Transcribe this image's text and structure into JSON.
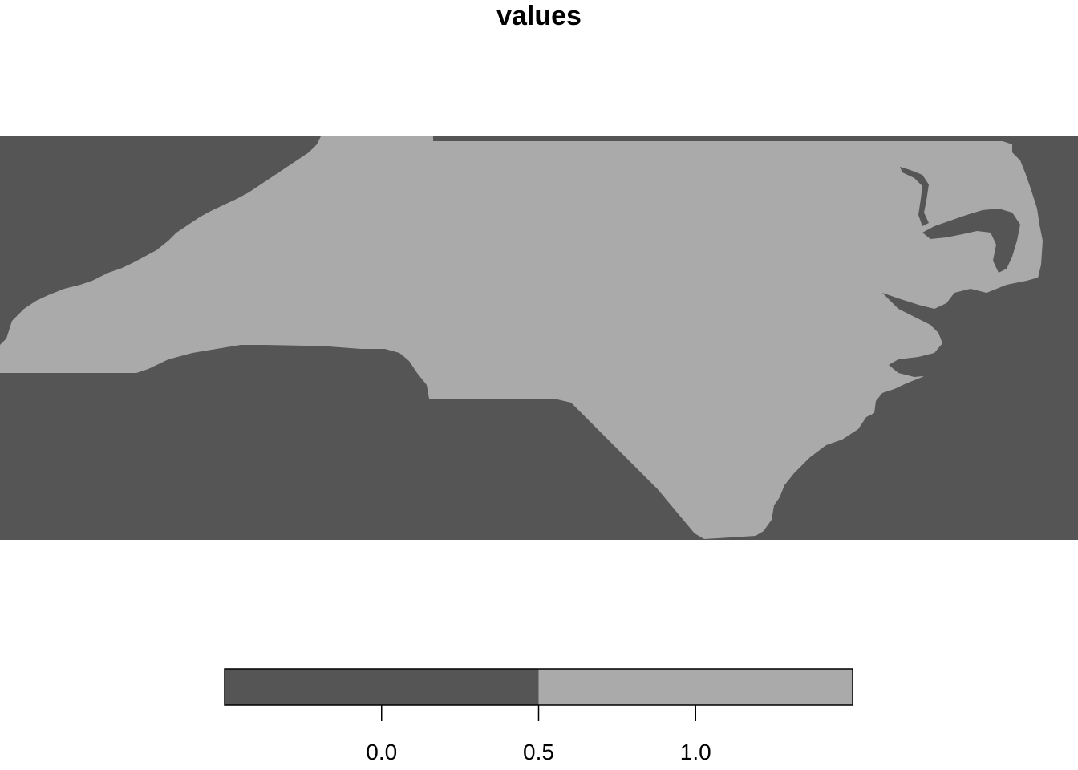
{
  "title": "values",
  "colors": {
    "class_0": "#555555",
    "class_1": "#aaaaaa",
    "background": "#ffffff",
    "outline": "#000000"
  },
  "chart_data": {
    "type": "heatmap",
    "title": "values",
    "description_values": "raster of two classes: 0 (water/outside) and 1 (land)",
    "legend": {
      "type": "continuous-bins",
      "breaks": [
        -0.5,
        0.5,
        1.5
      ],
      "bins": [
        {
          "from": -0.5,
          "to": 0.5,
          "color": "#555555"
        },
        {
          "from": 0.5,
          "to": 1.5,
          "color": "#aaaaaa"
        }
      ],
      "ticks": [
        "0.0",
        "0.5",
        "1.0"
      ],
      "tick_values": [
        0.0,
        0.5,
        1.0
      ],
      "placement": "bottom"
    }
  }
}
